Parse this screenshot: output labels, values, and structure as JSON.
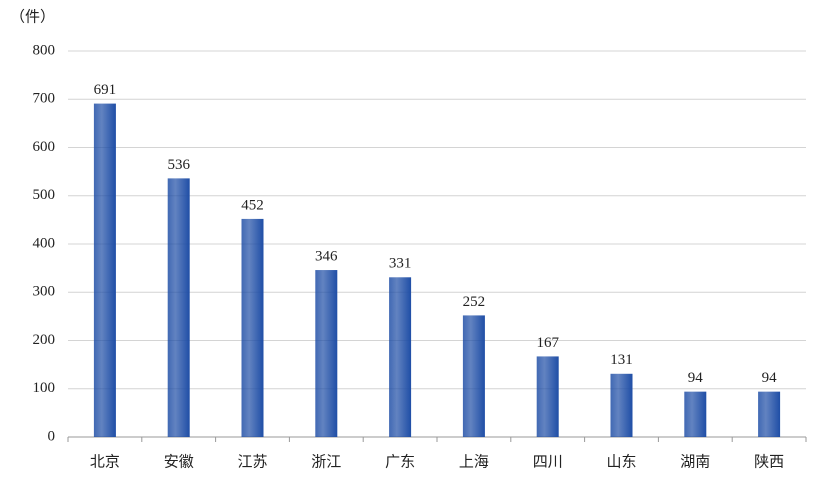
{
  "chart_data": {
    "type": "bar",
    "y_label": "（件）",
    "categories": [
      "北京",
      "安徽",
      "江苏",
      "浙江",
      "广东",
      "上海",
      "四川",
      "山东",
      "湖南",
      "陕西"
    ],
    "values": [
      691,
      536,
      452,
      346,
      331,
      252,
      167,
      131,
      94,
      94
    ],
    "color": "#1f4ea6",
    "ylim": [
      0,
      800
    ],
    "yticks": [
      0,
      100,
      200,
      300,
      400,
      500,
      600,
      700,
      800
    ],
    "grid": true
  }
}
